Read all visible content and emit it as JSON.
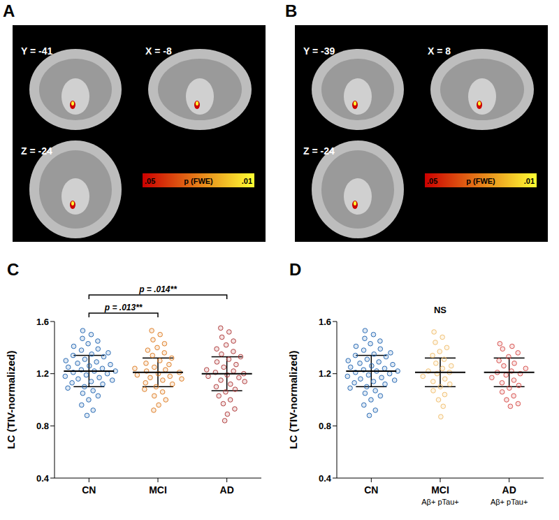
{
  "brain_panels": [
    {
      "panel": "A",
      "slices": [
        "Y = -41",
        "X = -8",
        "Z = -24"
      ],
      "colorbar": {
        "label": "p (FWE)",
        "range": [
          0.05,
          0.01
        ],
        "ticks": [
          {
            "value": 0.05,
            "label": ".05"
          },
          {
            "value": 0.01,
            "label": ".01"
          }
        ],
        "colors": [
          "#cc0000",
          "#ffff33"
        ]
      }
    },
    {
      "panel": "B",
      "slices": [
        "Y = -39",
        "X = 8",
        "Z = -24"
      ],
      "colorbar": {
        "label": "p (FWE)",
        "range": [
          0.05,
          0.01
        ],
        "ticks": [
          {
            "value": 0.05,
            "label": ".05"
          },
          {
            "value": 0.01,
            "label": ".01"
          }
        ],
        "colors": [
          "#cc0000",
          "#ffff33"
        ]
      }
    }
  ],
  "chart_data": [
    {
      "panel": "C",
      "type": "scatter",
      "marker": "circle",
      "categories": [
        "CN",
        "MCI",
        "AD"
      ],
      "ylabel": "LC (TIV-normalized)",
      "ylim": [
        0.4,
        1.6
      ],
      "yticks": [
        0.4,
        0.8,
        1.2,
        1.6
      ],
      "colors": [
        "#2b6cb5",
        "#e0812a",
        "#b24040"
      ],
      "values": [
        [
          1.53,
          1.5,
          1.47,
          1.45,
          1.43,
          1.41,
          1.39,
          1.38,
          1.36,
          1.35,
          1.34,
          1.33,
          1.31,
          1.3,
          1.29,
          1.28,
          1.27,
          1.26,
          1.25,
          1.24,
          1.23,
          1.22,
          1.22,
          1.21,
          1.2,
          1.19,
          1.18,
          1.17,
          1.16,
          1.15,
          1.14,
          1.13,
          1.12,
          1.1,
          1.09,
          1.07,
          1.05,
          1.03,
          1.0,
          0.96,
          0.92,
          0.88
        ],
        [
          1.53,
          1.5,
          1.46,
          1.43,
          1.4,
          1.38,
          1.36,
          1.34,
          1.32,
          1.3,
          1.28,
          1.27,
          1.25,
          1.24,
          1.23,
          1.22,
          1.21,
          1.2,
          1.19,
          1.18,
          1.17,
          1.16,
          1.15,
          1.13,
          1.12,
          1.1,
          1.08,
          1.06,
          1.03,
          1.0,
          0.96,
          0.92
        ],
        [
          1.55,
          1.52,
          1.48,
          1.45,
          1.42,
          1.39,
          1.37,
          1.35,
          1.33,
          1.31,
          1.29,
          1.27,
          1.25,
          1.23,
          1.22,
          1.21,
          1.2,
          1.19,
          1.18,
          1.17,
          1.15,
          1.14,
          1.12,
          1.1,
          1.08,
          1.06,
          1.03,
          1.0,
          0.97,
          0.93,
          0.89,
          0.84
        ]
      ],
      "mean": [
        1.22,
        1.21,
        1.2
      ],
      "sd": [
        0.12,
        0.11,
        0.13
      ],
      "annotations": [
        {
          "text": "p = .013**",
          "from": "CN",
          "to": "MCI"
        },
        {
          "text": "p = .014**",
          "from": "CN",
          "to": "AD"
        }
      ]
    },
    {
      "panel": "D",
      "type": "scatter",
      "marker": "circle",
      "categories": [
        "CN",
        "MCI",
        "AD"
      ],
      "category_sublabels": [
        null,
        "Aβ+ pTau+",
        "Aβ+ pTau+"
      ],
      "ylabel": "LC (TIV-normalized)",
      "ylim": [
        0.4,
        1.6
      ],
      "yticks": [
        0.4,
        0.8,
        1.2,
        1.6
      ],
      "colors": [
        "#2b6cb5",
        "#f2c173",
        "#d9534f"
      ],
      "values": [
        [
          1.53,
          1.5,
          1.47,
          1.45,
          1.43,
          1.41,
          1.39,
          1.38,
          1.36,
          1.35,
          1.34,
          1.33,
          1.31,
          1.3,
          1.29,
          1.28,
          1.27,
          1.26,
          1.25,
          1.24,
          1.23,
          1.22,
          1.22,
          1.21,
          1.2,
          1.19,
          1.18,
          1.17,
          1.16,
          1.15,
          1.14,
          1.13,
          1.12,
          1.1,
          1.09,
          1.07,
          1.05,
          1.03,
          1.0,
          0.96,
          0.92,
          0.88
        ],
        [
          1.52,
          1.48,
          1.44,
          1.4,
          1.37,
          1.34,
          1.31,
          1.28,
          1.26,
          1.24,
          1.22,
          1.21,
          1.2,
          1.18,
          1.16,
          1.14,
          1.12,
          1.1,
          1.07,
          1.04,
          1.0,
          0.95,
          0.87
        ],
        [
          1.43,
          1.41,
          1.39,
          1.36,
          1.33,
          1.3,
          1.28,
          1.26,
          1.24,
          1.22,
          1.21,
          1.2,
          1.19,
          1.17,
          1.15,
          1.13,
          1.11,
          1.09,
          1.06,
          1.03,
          1.0,
          0.97,
          0.95
        ]
      ],
      "mean": [
        1.22,
        1.21,
        1.21
      ],
      "sd": [
        0.12,
        0.11,
        0.11
      ],
      "annotations": [
        {
          "text": "NS"
        }
      ]
    }
  ]
}
